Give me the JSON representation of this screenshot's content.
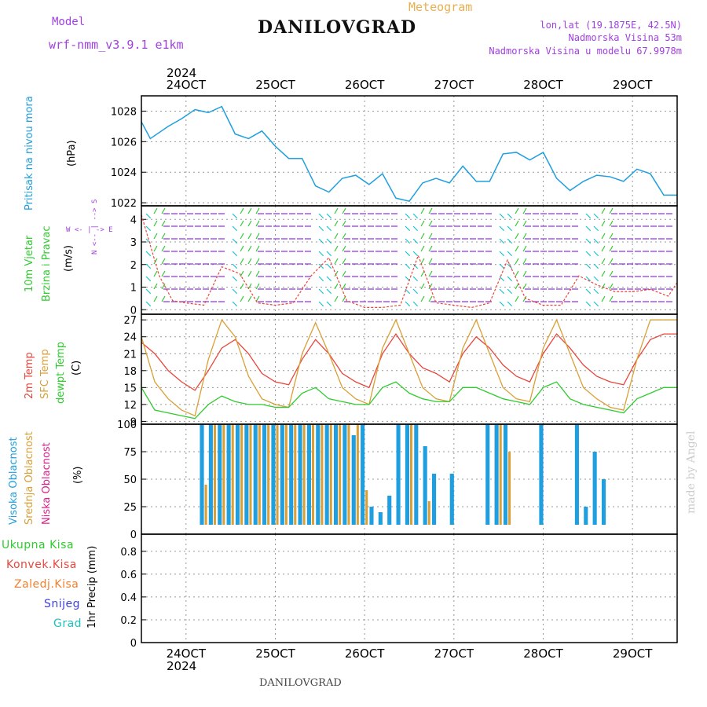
{
  "header": {
    "model_label": "Model",
    "model_name": "wrf-nmm_v3.9.1 e1km",
    "title": "DANILOVGRAD",
    "subtitle": "Meteogram",
    "lonlat": "lon,lat (19.1875E, 42.5N)",
    "altitude": "Nadmorska Visina 53m",
    "altitude_model": "Nadmorska Visina u modelu 67.9978m"
  },
  "footer": {
    "station": "DANILOVGRAD",
    "watermark": "made by Angel"
  },
  "colors": {
    "pressure": "#1f9fdf",
    "temp2m": "#e8463c",
    "sfctemp": "#d9a037",
    "dewpt": "#2ecc2e",
    "cloud_high": "#1f9fdf",
    "cloud_mid": "#d9a037",
    "cloud_low": "#e0208a",
    "wind_purple": "#8a2be2",
    "wind_teal": "#20c0d0",
    "wind_green": "#38c838",
    "precip_total": "#2ecc2e",
    "precip_conv": "#e8463c",
    "precip_frozen": "#f08030",
    "snow": "#4040e0",
    "grad": "#20c0c0"
  },
  "x_axis": {
    "top_year": "2024",
    "bottom_year": "2024",
    "day_labels": [
      "24OCT",
      "25OCT",
      "26OCT",
      "27OCT",
      "28OCT",
      "29OCT"
    ],
    "day_index": [
      0.5,
      1.5,
      2.5,
      3.5,
      4.5,
      5.5
    ],
    "range": [
      0,
      6.0
    ]
  },
  "panels": {
    "pressure": {
      "label": "Pritisak na nivou mora",
      "unit": "(hPa)",
      "ticks": [
        "1022",
        "1024",
        "1026",
        "1028"
      ]
    },
    "wind": {
      "label1": "10m Vjetar",
      "label2": "Brzina i Pravac",
      "unit": "(m/s)",
      "ticks": [
        "0",
        "1",
        "2",
        "3",
        "4"
      ],
      "compass": "W <- | -> E",
      "compass_vertical": "N <-- | --> S"
    },
    "temp": {
      "label1": "2m Temp",
      "label2": "SFC Temp",
      "label3": "dewpt Temp",
      "unit": "(C)",
      "ticks": [
        "9",
        "12",
        "15",
        "18",
        "21",
        "24",
        "27"
      ]
    },
    "cloud": {
      "label1": "Visoka Oblacnost",
      "label2": "Srednja Oblacnost",
      "label3": "Niska Oblacnost",
      "unit": "(%)",
      "ticks": [
        "0",
        "25",
        "50",
        "75",
        "100"
      ]
    },
    "precip": {
      "unit": "1hr Precip (mm)",
      "ticks": [
        "0",
        "0.2",
        "0.4",
        "0.6",
        "0.8"
      ],
      "legend": [
        "Ukupna Kisa",
        "Konvek.Kisa",
        "Zaledj.Kisa",
        "Snijeg",
        "Grad"
      ]
    }
  },
  "chart_data": [
    {
      "type": "line",
      "title": "",
      "ylabel": "Pritisak na nivou mora (hPa)",
      "ylim": [
        1021.8,
        1029
      ],
      "series": [
        {
          "name": "Pritisak na nivou mora",
          "x": [
            0,
            0.1,
            0.3,
            0.45,
            0.6,
            0.75,
            0.9,
            1.05,
            1.2,
            1.35,
            1.5,
            1.65,
            1.8,
            1.95,
            2.1,
            2.25,
            2.4,
            2.55,
            2.7,
            2.85,
            3.0,
            3.15,
            3.3,
            3.45,
            3.6,
            3.75,
            3.9,
            4.05,
            4.2,
            4.35,
            4.5,
            4.65,
            4.8,
            4.95,
            5.1,
            5.25,
            5.4,
            5.55,
            5.7,
            5.85,
            6.0
          ],
          "values": [
            1027.3,
            1026.2,
            1027.0,
            1027.5,
            1028.1,
            1027.9,
            1028.3,
            1026.5,
            1026.2,
            1026.7,
            1025.7,
            1024.9,
            1024.9,
            1023.1,
            1022.7,
            1023.6,
            1023.8,
            1023.2,
            1023.9,
            1022.3,
            1022.1,
            1023.3,
            1023.6,
            1023.3,
            1024.4,
            1023.4,
            1023.4,
            1025.2,
            1025.3,
            1024.8,
            1025.3,
            1023.6,
            1022.8,
            1023.4,
            1023.8,
            1023.7,
            1023.4,
            1024.2,
            1023.9,
            1022.5,
            1022.5
          ]
        }
      ]
    },
    {
      "type": "line",
      "title": "",
      "ylabel": "10m Vjetar Brzina i Pravac (m/s)",
      "ylim": [
        -0.2,
        4.6
      ],
      "series": [
        {
          "name": "10m Vjetar",
          "x": [
            0,
            0.2,
            0.35,
            0.5,
            0.7,
            0.9,
            1.1,
            1.3,
            1.5,
            1.7,
            1.9,
            2.1,
            2.3,
            2.5,
            2.7,
            2.9,
            3.1,
            3.3,
            3.5,
            3.7,
            3.9,
            4.1,
            4.3,
            4.5,
            4.7,
            4.9,
            5.1,
            5.3,
            5.5,
            5.7,
            5.9,
            6.0
          ],
          "values": [
            4.2,
            1.5,
            0.4,
            0.3,
            0.2,
            1.9,
            1.6,
            0.3,
            0.2,
            0.3,
            1.5,
            2.3,
            0.4,
            0.1,
            0.1,
            0.2,
            2.4,
            0.3,
            0.2,
            0.1,
            0.3,
            2.2,
            0.5,
            0.2,
            0.2,
            1.5,
            1.1,
            0.8,
            0.8,
            0.9,
            0.6,
            1.2
          ]
        }
      ]
    },
    {
      "type": "line",
      "title": "",
      "ylabel": "(C)",
      "ylim": [
        8.5,
        28
      ],
      "series": [
        {
          "name": "2m Temp",
          "x": [
            0,
            0.15,
            0.3,
            0.45,
            0.6,
            0.75,
            0.9,
            1.05,
            1.2,
            1.35,
            1.5,
            1.65,
            1.8,
            1.95,
            2.1,
            2.25,
            2.4,
            2.55,
            2.7,
            2.85,
            3.0,
            3.15,
            3.3,
            3.45,
            3.6,
            3.75,
            3.9,
            4.05,
            4.2,
            4.35,
            4.5,
            4.65,
            4.8,
            4.95,
            5.1,
            5.25,
            5.4,
            5.55,
            5.7,
            5.85,
            6.0
          ],
          "values": [
            23,
            21,
            18,
            16,
            14.5,
            18,
            22,
            23.5,
            21,
            17.5,
            16,
            15.5,
            20,
            23.5,
            21,
            17.5,
            16,
            15,
            21,
            24.5,
            21,
            18.5,
            17.5,
            16,
            21,
            24,
            22,
            19,
            17,
            16,
            21,
            24.5,
            22,
            19,
            17,
            16,
            15.5,
            20,
            23.5,
            24.5,
            24.5
          ]
        },
        {
          "name": "SFC Temp",
          "x": [
            0,
            0.15,
            0.3,
            0.45,
            0.6,
            0.75,
            0.9,
            1.05,
            1.2,
            1.35,
            1.5,
            1.65,
            1.8,
            1.95,
            2.1,
            2.25,
            2.4,
            2.55,
            2.7,
            2.85,
            3.0,
            3.15,
            3.3,
            3.45,
            3.6,
            3.75,
            3.9,
            4.05,
            4.2,
            4.35,
            4.5,
            4.65,
            4.8,
            4.95,
            5.1,
            5.25,
            5.4,
            5.55,
            5.7,
            5.85,
            6.0
          ],
          "values": [
            24,
            16,
            13,
            11,
            10,
            20,
            27,
            24,
            17,
            13,
            12,
            11.5,
            21,
            26.5,
            21,
            15,
            13,
            12,
            22,
            27,
            21,
            15,
            13,
            12.5,
            22,
            27,
            21,
            15,
            13,
            12.5,
            22,
            27,
            21,
            15,
            13,
            11.5,
            11,
            20,
            27,
            27,
            27
          ]
        },
        {
          "name": "dewpt Temp",
          "x": [
            0,
            0.15,
            0.3,
            0.45,
            0.6,
            0.75,
            0.9,
            1.05,
            1.2,
            1.35,
            1.5,
            1.65,
            1.8,
            1.95,
            2.1,
            2.25,
            2.4,
            2.55,
            2.7,
            2.85,
            3.0,
            3.15,
            3.3,
            3.45,
            3.6,
            3.75,
            3.9,
            4.05,
            4.2,
            4.35,
            4.5,
            4.65,
            4.8,
            4.95,
            5.1,
            5.25,
            5.4,
            5.55,
            5.7,
            5.85,
            6.0
          ],
          "values": [
            15,
            11,
            10.5,
            10,
            9.5,
            12,
            13.5,
            12.5,
            12,
            12,
            11.5,
            11.5,
            14,
            15,
            13,
            12.5,
            12,
            12,
            15,
            16,
            14,
            13,
            12.5,
            12.5,
            15,
            15,
            14,
            13,
            12.5,
            12,
            15,
            16,
            13,
            12,
            11.5,
            11,
            10.5,
            13,
            14,
            15,
            15
          ]
        }
      ]
    },
    {
      "type": "bar",
      "title": "",
      "ylabel": "(%)",
      "ylim": [
        0,
        100
      ],
      "series": [
        {
          "name": "Visoka Oblacnost",
          "x": [
            0.7,
            0.8,
            0.9,
            1.0,
            1.1,
            1.2,
            1.3,
            1.4,
            1.5,
            1.6,
            1.7,
            1.8,
            1.9,
            2.0,
            2.1,
            2.2,
            2.3,
            2.4,
            2.5,
            2.6,
            2.7,
            2.8,
            2.9,
            3.0,
            3.1,
            3.2,
            3.3,
            3.4,
            3.5,
            3.9,
            4.0,
            4.1,
            4.5,
            4.9,
            5.0,
            5.1,
            5.2
          ],
          "values": [
            100,
            100,
            100,
            100,
            100,
            100,
            100,
            100,
            100,
            100,
            100,
            100,
            100,
            100,
            100,
            100,
            100,
            90,
            100,
            25,
            20,
            35,
            100,
            100,
            100,
            80,
            55,
            0,
            55,
            100,
            100,
            100,
            100,
            100,
            25,
            75,
            50
          ]
        },
        {
          "name": "Srednja Oblacnost",
          "x": [
            0.7,
            0.8,
            0.9,
            1.0,
            1.1,
            1.2,
            1.3,
            1.4,
            1.5,
            1.6,
            1.7,
            1.8,
            1.9,
            2.0,
            2.1,
            2.2,
            2.3,
            2.4,
            2.5,
            2.6,
            2.7,
            2.8,
            2.9,
            3.0,
            3.1,
            3.2,
            3.3,
            3.4,
            3.5,
            3.9,
            4.0,
            4.1,
            4.5,
            4.9,
            5.0,
            5.1,
            5.2
          ],
          "values": [
            45,
            100,
            100,
            100,
            100,
            100,
            100,
            100,
            100,
            100,
            100,
            100,
            100,
            100,
            100,
            100,
            100,
            100,
            40,
            0,
            0,
            0,
            0,
            100,
            0,
            30,
            0,
            0,
            0,
            0,
            100,
            75,
            0,
            0,
            0,
            0,
            0
          ]
        },
        {
          "name": "Niska Oblacnost",
          "x": [
            0.7,
            0.8,
            0.9,
            1.0,
            1.1,
            1.2,
            1.3,
            1.4,
            1.5,
            1.6,
            1.7,
            1.8,
            1.9,
            2.0,
            2.1,
            2.2,
            2.3,
            2.4,
            2.5,
            2.6,
            2.7,
            2.8,
            2.9,
            3.0,
            3.1,
            3.2,
            3.3,
            3.4,
            3.5,
            3.9,
            4.0,
            4.1,
            4.5,
            4.9,
            5.0,
            5.1,
            5.2
          ],
          "values": [
            0,
            0,
            0,
            0,
            0,
            0,
            0,
            0,
            0,
            0,
            0,
            0,
            0,
            0,
            0,
            0,
            0,
            0,
            0,
            0,
            0,
            0,
            0,
            0,
            0,
            0,
            0,
            0,
            0,
            0,
            0,
            0,
            0,
            0,
            0,
            0,
            0
          ]
        }
      ]
    },
    {
      "type": "bar",
      "title": "",
      "ylabel": "1hr Precip (mm)",
      "ylim": [
        0,
        0.95
      ],
      "series": [
        {
          "name": "Ukupna Kisa",
          "x": [
            0,
            6
          ],
          "values": [
            0,
            0
          ]
        }
      ]
    }
  ]
}
